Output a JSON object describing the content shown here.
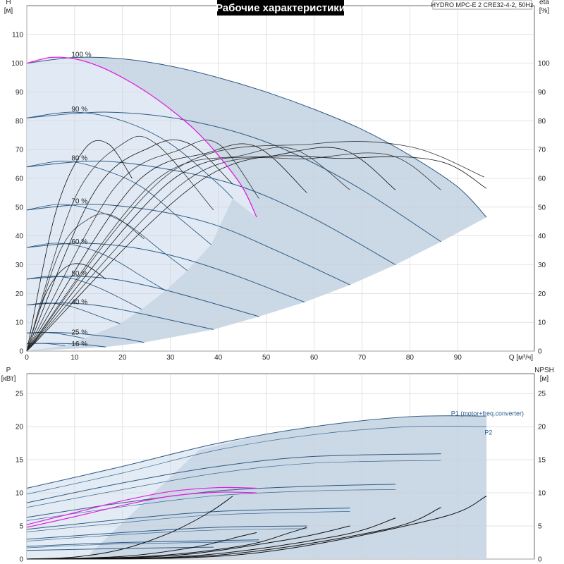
{
  "chart_data": [
    {
      "type": "line",
      "title": "Рабочие характеристики",
      "subtitle": "HYDRO MPC-E 2 CRE32-4-2, 50Hz",
      "xlabel": "Q [м³/ч]",
      "ylabel_left": "H [м]",
      "ylabel_right": "eta [%]",
      "xlim": [
        0,
        100
      ],
      "ylim_left": [
        0,
        120
      ],
      "ylim_right": [
        0,
        120
      ],
      "xticks": [
        0,
        10,
        20,
        30,
        40,
        50,
        60,
        70,
        80,
        90
      ],
      "yticks_left": [
        0,
        10,
        20,
        30,
        40,
        50,
        60,
        70,
        80,
        90,
        100,
        110
      ],
      "yticks_right": [
        0,
        10,
        20,
        30,
        40,
        50,
        60,
        70,
        80,
        90,
        100
      ],
      "grid": true,
      "speed_labels": [
        {
          "text": "100 %",
          "x": 5.5,
          "y": 103
        },
        {
          "text": "90 %",
          "x": 5.5,
          "y": 84
        },
        {
          "text": "80 %",
          "x": 5.5,
          "y": 67
        },
        {
          "text": "70 %",
          "x": 5.5,
          "y": 52
        },
        {
          "text": "60 %",
          "x": 5.5,
          "y": 38
        },
        {
          "text": "50 %",
          "x": 5.5,
          "y": 27
        },
        {
          "text": "40 %",
          "x": 5.5,
          "y": 17
        },
        {
          "text": "25 %",
          "x": 5.5,
          "y": 6.5
        },
        {
          "text": "16 %",
          "x": 5.5,
          "y": 2.5
        }
      ],
      "head_curves_one_pump": [
        {
          "speed": 100,
          "h0": 100,
          "x": [
            0,
            5,
            10,
            15,
            20,
            25,
            30,
            35,
            40,
            45,
            48
          ],
          "y": [
            100,
            102,
            101.5,
            99,
            95,
            90,
            84,
            77,
            68,
            57,
            46.5
          ]
        },
        {
          "speed": 90,
          "h0": 81,
          "x": [
            0,
            10,
            20,
            30,
            40,
            43
          ],
          "y": [
            81,
            83,
            80,
            72,
            58,
            53
          ]
        },
        {
          "speed": 80,
          "h0": 64,
          "x": [
            0,
            8,
            16,
            24,
            32,
            38.5
          ],
          "y": [
            64,
            66,
            63,
            57,
            46,
            37
          ]
        },
        {
          "speed": 70,
          "h0": 49,
          "x": [
            0,
            7,
            14,
            21,
            28,
            33.5
          ],
          "y": [
            49,
            51,
            49,
            44,
            35,
            28
          ]
        },
        {
          "speed": 60,
          "h0": 36,
          "x": [
            0,
            6,
            12,
            18,
            24,
            29
          ],
          "y": [
            36,
            37.5,
            36,
            32,
            26,
            21
          ]
        },
        {
          "speed": 50,
          "h0": 25,
          "x": [
            0,
            5,
            10,
            15,
            20,
            24
          ],
          "y": [
            25,
            26,
            25,
            22,
            18,
            14.5
          ]
        },
        {
          "speed": 40,
          "h0": 16,
          "x": [
            0,
            4,
            8,
            12,
            16,
            19.5
          ],
          "y": [
            16,
            16.7,
            16,
            14,
            11.5,
            9.5
          ]
        },
        {
          "speed": 25,
          "h0": 6.3,
          "x": [
            0,
            3,
            6,
            9,
            12
          ],
          "y": [
            6.3,
            6.5,
            6.2,
            5.4,
            4.4
          ]
        },
        {
          "speed": 16,
          "h0": 2.6,
          "x": [
            0,
            2,
            4,
            6,
            8
          ],
          "y": [
            2.6,
            2.7,
            2.6,
            2.3,
            1.9
          ]
        }
      ],
      "head_curves_two_pumps": [
        {
          "speed": 100,
          "x": [
            0,
            10,
            20,
            30,
            40,
            50,
            60,
            70,
            80,
            90,
            96
          ],
          "y": [
            100,
            102,
            101.5,
            99,
            95,
            90,
            84,
            77,
            68,
            57,
            46.5
          ]
        },
        {
          "speed": 90,
          "x": [
            0,
            17,
            34,
            51,
            68,
            86.5
          ],
          "y": [
            81,
            83,
            80,
            72,
            58,
            38
          ]
        },
        {
          "speed": 80,
          "x": [
            0,
            15,
            30,
            45,
            60,
            77
          ],
          "y": [
            64,
            66,
            63,
            57,
            46,
            30
          ]
        },
        {
          "speed": 70,
          "x": [
            0,
            13,
            26,
            39,
            52,
            67.5
          ],
          "y": [
            49,
            51,
            49,
            44,
            35,
            23
          ]
        },
        {
          "speed": 60,
          "x": [
            0,
            11,
            22,
            33,
            44,
            58
          ],
          "y": [
            36,
            37.5,
            36,
            32,
            26,
            17
          ]
        },
        {
          "speed": 50,
          "x": [
            0,
            9,
            18,
            27,
            36,
            48.5
          ],
          "y": [
            25,
            26,
            25,
            22,
            18,
            12
          ]
        },
        {
          "speed": 40,
          "x": [
            0,
            7,
            14,
            21,
            28,
            39
          ],
          "y": [
            16,
            16.7,
            16,
            14,
            11.5,
            7.5
          ]
        },
        {
          "speed": 25,
          "x": [
            0,
            5,
            10,
            15,
            20,
            24.5
          ],
          "y": [
            6.3,
            6.5,
            6.2,
            5.4,
            4.4,
            3
          ]
        },
        {
          "speed": 16,
          "x": [
            0,
            4,
            8,
            12,
            16.5
          ],
          "y": [
            2.6,
            2.7,
            2.6,
            2.3,
            1.4
          ]
        }
      ],
      "efficiency_curves": [
        {
          "x": [
            0,
            4,
            8,
            12,
            16.5
          ],
          "y": [
            0,
            20,
            29,
            30,
            25
          ]
        },
        {
          "x": [
            0,
            7,
            13,
            18,
            24.5
          ],
          "y": [
            0,
            35,
            46,
            47,
            39
          ]
        },
        {
          "x": [
            0,
            6,
            12,
            17,
            22
          ],
          "y": [
            0,
            48,
            70,
            72,
            60
          ]
        },
        {
          "x": [
            0,
            10,
            20,
            27,
            39
          ],
          "y": [
            0,
            53,
            72,
            72,
            49
          ]
        },
        {
          "x": [
            0,
            14,
            26,
            34,
            43
          ],
          "y": [
            0,
            55,
            71,
            72,
            58
          ]
        },
        {
          "x": [
            0,
            18,
            32,
            40,
            48.5
          ],
          "y": [
            0,
            56,
            70,
            72,
            53
          ]
        },
        {
          "x": [
            0,
            22,
            38,
            48,
            58.5
          ],
          "y": [
            0,
            57,
            69,
            71,
            55
          ]
        },
        {
          "x": [
            0,
            26,
            45,
            56,
            67.5
          ],
          "y": [
            0,
            58,
            68,
            70,
            56
          ]
        },
        {
          "x": [
            0,
            30,
            52,
            66,
            77
          ],
          "y": [
            0,
            59,
            68,
            70,
            56
          ]
        },
        {
          "x": [
            0,
            34,
            60,
            76,
            86.5
          ],
          "y": [
            0,
            60,
            67,
            68,
            56
          ]
        },
        {
          "x": [
            0,
            38,
            68,
            86,
            96
          ],
          "y": [
            0,
            61,
            67,
            66,
            56.5
          ]
        },
        {
          "x": [
            0,
            30,
            60,
            80,
            95.5
          ],
          "y": [
            0,
            62,
            72,
            71,
            60.5
          ]
        }
      ],
      "magenta_curve": {
        "x": [
          0,
          5,
          10,
          15,
          20,
          25,
          30,
          35,
          40,
          45,
          48
        ],
        "y": [
          100,
          102,
          101.5,
          99,
          95,
          90,
          84,
          77,
          68,
          57,
          46.5
        ]
      }
    },
    {
      "type": "line",
      "xlabel": "Q [м³/ч]",
      "ylabel_left": "P [кВт]",
      "ylabel_right": "NPSH [м]",
      "xlim": [
        0,
        100
      ],
      "ylim_left": [
        0,
        28
      ],
      "ylim_right": [
        0,
        28
      ],
      "yticks_left": [
        0,
        5,
        10,
        15,
        20,
        25
      ],
      "yticks_right": [
        0,
        5,
        10,
        15,
        20,
        25
      ],
      "grid": true,
      "series_labels": [
        {
          "text": "P1 (motor+freq.converter)",
          "x": 88,
          "y": 22
        },
        {
          "text": "P2",
          "x": 95,
          "y": 19.1
        }
      ],
      "power_curves_p1": [
        {
          "x": [
            0,
            20,
            40,
            60,
            80,
            96
          ],
          "y": [
            10.7,
            14,
            17.5,
            20,
            21.5,
            21.6
          ]
        },
        {
          "x": [
            0,
            20,
            40,
            60,
            86.5
          ],
          "y": [
            8.5,
            11.5,
            14,
            15.5,
            15.9
          ]
        },
        {
          "x": [
            0,
            20,
            40,
            60,
            77
          ],
          "y": [
            6.3,
            8.5,
            10.3,
            11,
            11.3
          ]
        },
        {
          "x": [
            0,
            20,
            40,
            67.5
          ],
          "y": [
            4.5,
            6,
            7.2,
            7.7
          ]
        },
        {
          "x": [
            0,
            20,
            40,
            58.5
          ],
          "y": [
            3,
            4,
            4.8,
            5
          ]
        },
        {
          "x": [
            0,
            20,
            48.5
          ],
          "y": [
            1.9,
            2.5,
            2.9
          ]
        },
        {
          "x": [
            0,
            20,
            39
          ],
          "y": [
            1.3,
            1.6,
            1.8
          ]
        }
      ],
      "power_curves_p2": [
        {
          "x": [
            0,
            20,
            40,
            60,
            80,
            96
          ],
          "y": [
            9.8,
            13,
            16.5,
            18.8,
            20,
            20
          ]
        },
        {
          "x": [
            0,
            20,
            40,
            60,
            86.5
          ],
          "y": [
            7.8,
            10.5,
            13,
            14.5,
            14.9
          ]
        },
        {
          "x": [
            0,
            20,
            40,
            60,
            77
          ],
          "y": [
            5.8,
            7.9,
            9.6,
            10.3,
            10.5
          ]
        },
        {
          "x": [
            0,
            20,
            40,
            67.5
          ],
          "y": [
            4.1,
            5.5,
            6.7,
            7.2
          ]
        },
        {
          "x": [
            0,
            20,
            40,
            58.5
          ],
          "y": [
            2.7,
            3.7,
            4.4,
            4.6
          ]
        },
        {
          "x": [
            0,
            20,
            48.5
          ],
          "y": [
            1.7,
            2.3,
            2.6
          ]
        }
      ],
      "magenta_power_curves": [
        {
          "x": [
            0,
            10,
            20,
            30,
            40,
            48
          ],
          "y": [
            5.2,
            7,
            8.8,
            10.2,
            10.8,
            10.7
          ]
        },
        {
          "x": [
            0,
            10,
            20,
            30,
            40,
            48
          ],
          "y": [
            4.8,
            6.4,
            8.1,
            9.5,
            10.1,
            10
          ]
        }
      ],
      "npsh_curves": [
        {
          "x": [
            0,
            10,
            20,
            30,
            38,
            43
          ],
          "y": [
            0,
            0.3,
            1.5,
            4,
            7,
            9.5
          ]
        },
        {
          "x": [
            0,
            20,
            35,
            45,
            48
          ],
          "y": [
            0,
            0.4,
            1.8,
            3.5,
            4
          ]
        },
        {
          "x": [
            0,
            25,
            45,
            55,
            58.5
          ],
          "y": [
            0,
            0.4,
            2,
            4,
            4.8
          ]
        },
        {
          "x": [
            0,
            30,
            55,
            67.5
          ],
          "y": [
            0,
            0.5,
            3,
            5
          ]
        },
        {
          "x": [
            0,
            35,
            65,
            77
          ],
          "y": [
            0,
            0.5,
            3.5,
            6.2
          ]
        },
        {
          "x": [
            0,
            40,
            75,
            86.5
          ],
          "y": [
            0,
            0.6,
            4.5,
            7.8
          ]
        },
        {
          "x": [
            0,
            45,
            85,
            96
          ],
          "y": [
            0,
            0.7,
            6,
            9.5
          ]
        }
      ]
    }
  ]
}
